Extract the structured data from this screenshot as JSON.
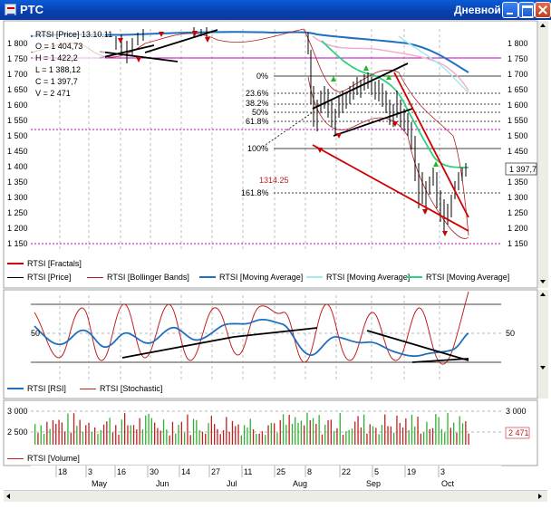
{
  "window": {
    "title": "PTC",
    "period": "Дневной",
    "icon": "chart-app-icon",
    "buttons": [
      "minimize-icon",
      "maximize-icon",
      "close-icon"
    ]
  },
  "info_box": {
    "line1": "RTSI [Price] 13.10.11",
    "line2": "O = 1 404,73",
    "line3": "H = 1 422,2",
    "line4": "L = 1 388,12",
    "line5": "C = 1 397,7",
    "line6": "V = 2 471"
  },
  "fib": {
    "l0": "0%",
    "l236": "23.6%",
    "l382": "38.2%",
    "l50": "50%",
    "l618": "61.8%",
    "l100": "100%",
    "l1618": "161.8%",
    "low_label": "1314.25"
  },
  "main_panel": {
    "y_labels": [
      "1 800",
      "1 750",
      "1 700",
      "1 650",
      "1 600",
      "1 550",
      "1 500",
      "1 450",
      "1 400",
      "1 350",
      "1 300",
      "1 250",
      "1 200",
      "1 150"
    ],
    "y_values": [
      1800,
      1750,
      1700,
      1650,
      1600,
      1550,
      1500,
      1450,
      1400,
      1350,
      1300,
      1250,
      1200,
      1150
    ],
    "right_labels": [
      "1 800",
      "1 750",
      "1 700",
      "1 650",
      "1 600",
      "1 550",
      "1 500",
      "1 450",
      "1 400",
      "1 350",
      "1 300",
      "1 250",
      "1 200",
      "1 150"
    ],
    "current_price": "1 397,7"
  },
  "legend_main": {
    "fractals": "RTSI [Fractals]",
    "price": "RTSI [Price]",
    "bollinger": "RTSI [Bollinger Bands]",
    "ma1": "RTSI [Moving Average]",
    "ma2": "RTSI [Moving Average]",
    "ma3": "RTSI [Moving Average]"
  },
  "osc_panel": {
    "left_label": "50",
    "right_label": "50"
  },
  "legend_osc": {
    "rsi": "RTSI [RSI]",
    "stoch": "RTSI [Stochastic]"
  },
  "vol_panel": {
    "left_labels": [
      "3 000",
      "2 500"
    ],
    "right_label": "3 000",
    "current_volume": "2 471"
  },
  "legend_vol": {
    "volume": "RTSI [Volume]"
  },
  "time_axis": {
    "days": [
      "18",
      "3",
      "16",
      "30",
      "14",
      "27",
      "11",
      "25",
      "8",
      "22",
      "5",
      "19",
      "3"
    ],
    "months": [
      "May",
      "Jun",
      "Jul",
      "Aug",
      "Sep",
      "Oct"
    ]
  },
  "colors": {
    "price": "#000000",
    "fractal": "#cc0000",
    "fractal_up": "#22b522",
    "bollinger": "#b02020",
    "ma_blue": "#1f6fbf",
    "ma_light": "#a8e8f0",
    "ma_green": "#30d080",
    "ma_pink": "#f0b0c8",
    "rsi": "#1f6fbf",
    "stoch": "#c02020",
    "volume_up": "#30b030",
    "volume_down": "#c02020",
    "magenta_level": "#c000c0"
  }
}
